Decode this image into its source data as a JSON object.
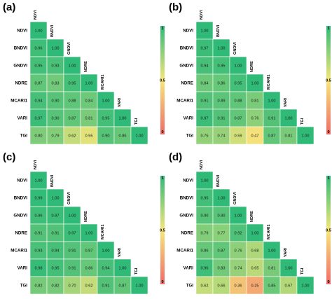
{
  "colorscale": {
    "low": "#f26a6a",
    "mid": "#f5e77a",
    "high": "#2fba78"
  },
  "chart_data": [
    {
      "type": "heatmap",
      "panel_label": "(a)",
      "variables": [
        "NDVI",
        "BNDVI",
        "GNDVI",
        "NDRE",
        "MCARI1",
        "VARI",
        "TGI"
      ],
      "lower_triangle": [
        [
          "1.00"
        ],
        [
          "0.96",
          "1.00"
        ],
        [
          "0.95",
          "0.93",
          "1.00"
        ],
        [
          "0.87",
          "0.83",
          "0.95",
          "1.00"
        ],
        [
          "0.94",
          "0.90",
          "0.88",
          "0.84",
          "1.00"
        ],
        [
          "0.97",
          "0.90",
          "0.87",
          "0.81",
          "0.95",
          "1.00"
        ],
        [
          "0.80",
          "0.79",
          "0.62",
          "0.55",
          "0.90",
          "0.86",
          "1.00"
        ]
      ],
      "colorbar": {
        "min": 0,
        "mid": 0.5,
        "max": 1,
        "ticks": [
          "1",
          "0.5",
          "0"
        ]
      }
    },
    {
      "type": "heatmap",
      "panel_label": "(b)",
      "variables": [
        "NDVI",
        "BNDVI",
        "GNDVI",
        "NDRE",
        "MCARI1",
        "VARI",
        "TGI"
      ],
      "lower_triangle": [
        [
          "1.00"
        ],
        [
          "0.97",
          "1.00"
        ],
        [
          "0.94",
          "0.95",
          "1.00"
        ],
        [
          "0.84",
          "0.86",
          "0.95",
          "1.00"
        ],
        [
          "0.91",
          "0.89",
          "0.88",
          "0.81",
          "1.00"
        ],
        [
          "0.97",
          "0.91",
          "0.87",
          "0.76",
          "0.91",
          "1.00"
        ],
        [
          "0.75",
          "0.74",
          "0.59",
          "0.47",
          "0.87",
          "0.81",
          "1.00"
        ]
      ],
      "colorbar": {
        "min": 0,
        "mid": 0.5,
        "max": 1,
        "ticks": [
          "1",
          "0.5",
          "0"
        ]
      }
    },
    {
      "type": "heatmap",
      "panel_label": "(c)",
      "variables": [
        "NDVI",
        "BNDVI",
        "GNDVI",
        "NDRE",
        "MCARI1",
        "VARI",
        "TGI"
      ],
      "lower_triangle": [
        [
          "1.00"
        ],
        [
          "0.99",
          "1.00"
        ],
        [
          "0.96",
          "0.97",
          "1.00"
        ],
        [
          "0.91",
          "0.91",
          "0.97",
          "1.00"
        ],
        [
          "0.93",
          "0.94",
          "0.91",
          "0.87",
          "1.00"
        ],
        [
          "0.98",
          "0.95",
          "0.91",
          "0.86",
          "0.94",
          "1.00"
        ],
        [
          "0.82",
          "0.82",
          "0.70",
          "0.62",
          "0.91",
          "0.87",
          "1.00"
        ]
      ],
      "colorbar": {
        "min": 0,
        "mid": 0.5,
        "max": 1,
        "ticks": [
          "1",
          "0.5",
          "0"
        ]
      }
    },
    {
      "type": "heatmap",
      "panel_label": "(d)",
      "variables": [
        "NDVI",
        "BNDVI",
        "GNDVI",
        "NDRE",
        "MCARI1",
        "VARI",
        "TGI"
      ],
      "lower_triangle": [
        [
          "1.00"
        ],
        [
          "0.95",
          "1.00"
        ],
        [
          "0.90",
          "0.90",
          "1.00"
        ],
        [
          "0.79",
          "0.77",
          "0.92",
          "1.00"
        ],
        [
          "0.86",
          "0.87",
          "0.76",
          "0.68",
          "1.00"
        ],
        [
          "0.96",
          "0.83",
          "0.74",
          "0.65",
          "0.81",
          "1.00"
        ],
        [
          "0.62",
          "0.66",
          "0.36",
          "0.25",
          "0.85",
          "0.67",
          "1.00"
        ]
      ],
      "colorbar": {
        "min": 0,
        "mid": 0.5,
        "max": 1,
        "ticks": [
          "1",
          "0.5",
          "0"
        ]
      }
    }
  ]
}
